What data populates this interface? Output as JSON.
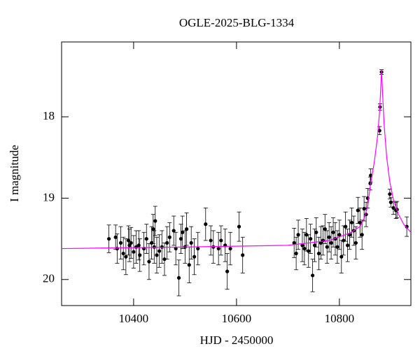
{
  "chart_data": {
    "type": "scatter",
    "title": "OGLE-2025-BLG-1334",
    "x_label": "HJD - 2450000",
    "y_label": "I magnitude",
    "xlim": [
      10260,
      10939
    ],
    "ylim": [
      20.32,
      17.08
    ],
    "y_inverted": true,
    "xticks": [
      10400,
      10600,
      10800
    ],
    "yticks": [
      18,
      19,
      20
    ],
    "series": [
      {
        "type": "scatter",
        "color": "#000000",
        "x": [
          10352,
          10365,
          10368,
          10375,
          10380,
          10385,
          10390,
          10392,
          10395,
          10400,
          10405,
          10410,
          10412,
          10420,
          10425,
          10430,
          10435,
          10438,
          10440,
          10442,
          10445,
          10450,
          10455,
          10460,
          10465,
          10470,
          10478,
          10482,
          10488,
          10492,
          10495,
          10500,
          10503,
          10508,
          10512,
          10518,
          10525,
          10540,
          10550,
          10555,
          10565,
          10570,
          10578,
          10582,
          10588,
          10605,
          10612,
          10712,
          10716,
          10720,
          10728,
          10732,
          10736,
          10740,
          10744,
          10748,
          10752,
          10755,
          10760,
          10764,
          10768,
          10772,
          10776,
          10780,
          10784,
          10788,
          10792,
          10796,
          10800,
          10804,
          10808,
          10812,
          10816,
          10820,
          10824,
          10828,
          10832,
          10836,
          10840,
          10844,
          10848,
          10852,
          10855,
          10860,
          10861,
          10878,
          10879,
          10882,
          10898,
          10900,
          10905,
          10910,
          10912,
          10931
        ],
        "values": [
          19.5,
          19.48,
          19.62,
          19.55,
          19.68,
          19.72,
          19.52,
          19.58,
          19.55,
          19.66,
          19.6,
          19.58,
          19.7,
          19.62,
          19.5,
          19.78,
          19.55,
          19.38,
          19.6,
          19.28,
          19.7,
          19.65,
          19.6,
          19.75,
          19.55,
          19.48,
          19.4,
          19.62,
          19.98,
          19.5,
          19.42,
          19.6,
          19.38,
          19.82,
          19.55,
          19.72,
          19.62,
          19.32,
          19.52,
          19.6,
          19.62,
          19.52,
          19.58,
          19.9,
          19.62,
          19.35,
          19.7,
          19.55,
          19.68,
          19.45,
          19.58,
          19.62,
          19.45,
          19.65,
          19.5,
          19.95,
          19.58,
          19.42,
          19.68,
          19.55,
          19.52,
          19.38,
          19.6,
          19.48,
          19.55,
          19.42,
          19.5,
          19.6,
          19.45,
          19.72,
          19.52,
          19.35,
          19.58,
          19.45,
          19.3,
          19.4,
          19.55,
          19.15,
          19.3,
          19.45,
          19.13,
          19.2,
          19.0,
          18.82,
          18.72,
          18.17,
          17.88,
          17.45,
          18.95,
          19.05,
          19.12,
          19.15,
          19.14,
          19.35
        ],
        "errors": [
          0.17,
          0.15,
          0.18,
          0.2,
          0.2,
          0.22,
          0.18,
          0.2,
          0.19,
          0.2,
          0.2,
          0.18,
          0.2,
          0.2,
          0.18,
          0.22,
          0.2,
          0.18,
          0.2,
          0.18,
          0.22,
          0.2,
          0.2,
          0.2,
          0.2,
          0.18,
          0.18,
          0.2,
          0.22,
          0.18,
          0.2,
          0.2,
          0.2,
          0.22,
          0.2,
          0.22,
          0.2,
          0.2,
          0.18,
          0.2,
          0.2,
          0.18,
          0.2,
          0.22,
          0.2,
          0.18,
          0.22,
          0.18,
          0.2,
          0.18,
          0.2,
          0.2,
          0.2,
          0.2,
          0.18,
          0.2,
          0.2,
          0.18,
          0.2,
          0.2,
          0.18,
          0.18,
          0.2,
          0.18,
          0.2,
          0.18,
          0.2,
          0.2,
          0.18,
          0.2,
          0.18,
          0.18,
          0.2,
          0.18,
          0.18,
          0.18,
          0.2,
          0.16,
          0.18,
          0.18,
          0.15,
          0.15,
          0.12,
          0.08,
          0.08,
          0.05,
          0.04,
          0.03,
          0.06,
          0.06,
          0.08,
          0.1,
          0.1,
          0.12
        ]
      },
      {
        "type": "line",
        "color": "#ff00ff",
        "x": [
          10260,
          10500,
          10700,
          10780,
          10820,
          10840,
          10848,
          10855,
          10860,
          10868,
          10874,
          10878,
          10880,
          10882,
          10884,
          10887,
          10892,
          10898,
          10905,
          10915,
          10925,
          10939
        ],
        "values": [
          19.62,
          19.6,
          19.58,
          19.52,
          19.43,
          19.35,
          19.25,
          19.1,
          18.85,
          18.55,
          18.25,
          17.95,
          17.7,
          17.42,
          17.72,
          18.1,
          18.5,
          18.8,
          19.02,
          19.2,
          19.32,
          19.42
        ]
      }
    ]
  }
}
